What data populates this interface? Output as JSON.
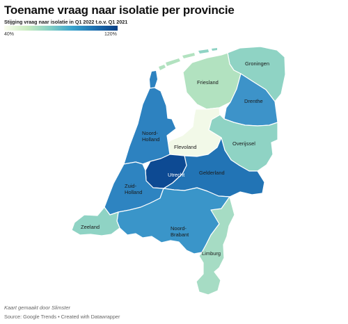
{
  "header": {
    "title": "Toename vraag naar isolatie per provincie",
    "subtitle": "Stijging vraag naar isolatie in Q1 2022 t.o.v. Q1 2021"
  },
  "legend": {
    "min_label": "40%",
    "max_label": "120%",
    "min_value": 40,
    "max_value": 120,
    "scale": "sequential",
    "colors": [
      "#fbfdf0",
      "#c9ecc0",
      "#85cfc4",
      "#3aa3cc",
      "#1c6fb0",
      "#0a3f85"
    ]
  },
  "map": {
    "provinces": [
      {
        "id": "groningen",
        "name": "Groningen",
        "color": "#8fd3c4"
      },
      {
        "id": "friesland",
        "name": "Friesland",
        "color": "#b2e2c0"
      },
      {
        "id": "drenthe",
        "name": "Drenthe",
        "color": "#3d93c9"
      },
      {
        "id": "overijssel",
        "name": "Overijssel",
        "color": "#8fd3c4"
      },
      {
        "id": "flevoland",
        "name": "Flevoland",
        "color": "#f2f9e8"
      },
      {
        "id": "gelderland",
        "name": "Gelderland",
        "color": "#2274b5"
      },
      {
        "id": "utrecht",
        "name": "Utrecht",
        "color": "#0d4a93"
      },
      {
        "id": "noord-holland",
        "name": "Noord-\nHolland",
        "color": "#2d82c0"
      },
      {
        "id": "zuid-holland",
        "name": "Zuid-\nHolland",
        "color": "#2e84c1"
      },
      {
        "id": "zeeland",
        "name": "Zeeland",
        "color": "#8fd3c4"
      },
      {
        "id": "noord-brabant",
        "name": "Noord-\nBrabant",
        "color": "#3a95c9"
      },
      {
        "id": "limburg",
        "name": "Limburg",
        "color": "#a6dcc4"
      }
    ]
  },
  "footer": {
    "credit": "Kaart gemaakt door Slimster",
    "source": "Source: Google Trends • Created with Datawrapper"
  }
}
